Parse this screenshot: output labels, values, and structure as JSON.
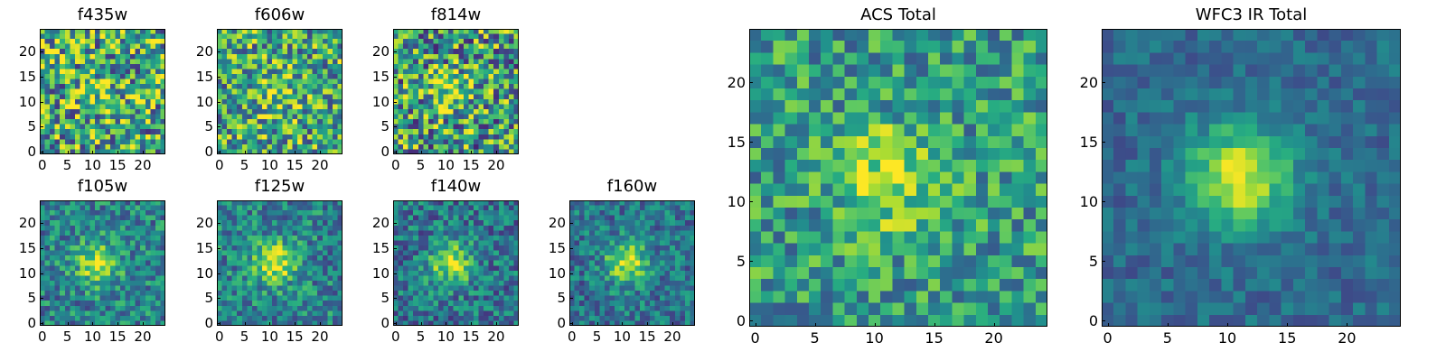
{
  "chart_data": [
    {
      "type": "heatmap",
      "title": "f435w",
      "grid_size": 25,
      "xticks": [
        0,
        5,
        10,
        15,
        20
      ],
      "yticks": [
        0,
        5,
        10,
        15,
        20
      ],
      "colormap": "viridis",
      "seed": 11,
      "noise": 0.9,
      "peak": 0.15,
      "bg": 0.6
    },
    {
      "type": "heatmap",
      "title": "f606w",
      "grid_size": 25,
      "xticks": [
        0,
        5,
        10,
        15,
        20
      ],
      "yticks": [
        0,
        5,
        10,
        15,
        20
      ],
      "colormap": "viridis",
      "seed": 23,
      "noise": 0.8,
      "peak": 0.2,
      "bg": 0.6
    },
    {
      "type": "heatmap",
      "title": "f814w",
      "grid_size": 25,
      "xticks": [
        0,
        5,
        10,
        15,
        20
      ],
      "yticks": [
        0,
        5,
        10,
        15,
        20
      ],
      "colormap": "viridis",
      "seed": 37,
      "noise": 0.9,
      "peak": 0.3,
      "bg": 0.55
    },
    {
      "type": "heatmap",
      "title": "f105w",
      "grid_size": 25,
      "xticks": [
        0,
        5,
        10,
        15,
        20
      ],
      "yticks": [
        0,
        5,
        10,
        15,
        20
      ],
      "colormap": "viridis",
      "seed": 41,
      "noise": 0.5,
      "peak": 0.45,
      "bg": 0.45
    },
    {
      "type": "heatmap",
      "title": "f125w",
      "grid_size": 25,
      "xticks": [
        0,
        5,
        10,
        15,
        20
      ],
      "yticks": [
        0,
        5,
        10,
        15,
        20
      ],
      "colormap": "viridis",
      "seed": 53,
      "noise": 0.5,
      "peak": 0.5,
      "bg": 0.45
    },
    {
      "type": "heatmap",
      "title": "f140w",
      "grid_size": 25,
      "xticks": [
        0,
        5,
        10,
        15,
        20
      ],
      "yticks": [
        0,
        5,
        10,
        15,
        20
      ],
      "colormap": "viridis",
      "seed": 67,
      "noise": 0.5,
      "peak": 0.5,
      "bg": 0.4
    },
    {
      "type": "heatmap",
      "title": "f160w",
      "grid_size": 25,
      "xticks": [
        0,
        5,
        10,
        15,
        20
      ],
      "yticks": [
        0,
        5,
        10,
        15,
        20
      ],
      "colormap": "viridis",
      "seed": 79,
      "noise": 0.45,
      "peak": 0.5,
      "bg": 0.4
    },
    {
      "type": "heatmap",
      "title": "ACS Total",
      "grid_size": 25,
      "xticks": [
        0,
        5,
        10,
        15,
        20
      ],
      "yticks": [
        0,
        5,
        10,
        15,
        20
      ],
      "colormap": "viridis",
      "seed": 97,
      "noise": 0.55,
      "peak": 0.35,
      "bg": 0.55
    },
    {
      "type": "heatmap",
      "title": "WFC3 IR Total",
      "grid_size": 25,
      "xticks": [
        0,
        5,
        10,
        15,
        20
      ],
      "yticks": [
        0,
        5,
        10,
        15,
        20
      ],
      "colormap": "viridis",
      "seed": 113,
      "noise": 0.25,
      "peak": 0.6,
      "bg": 0.35
    }
  ]
}
